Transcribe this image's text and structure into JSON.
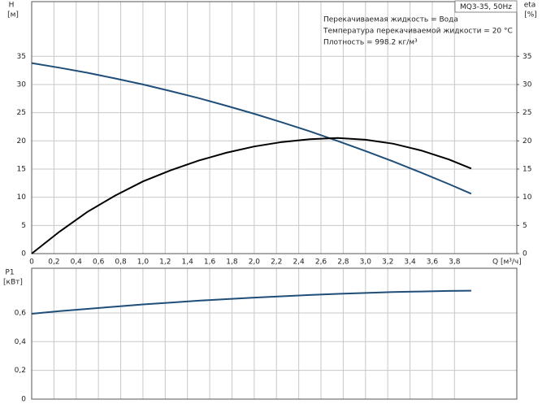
{
  "chart_data": [
    {
      "type": "line",
      "title": "MQ3-35, 50Hz",
      "annotations": [
        "Перекачиваемая жидкость = Вода",
        "Температура перекачиваемой жидкости = 20 °C",
        "Плотность = 998.2 кг/м³"
      ],
      "y_label": "H",
      "y_unit": "[м]",
      "y2_label": "eta",
      "y2_unit": "[%]",
      "x_label": "Q [м³/ч]",
      "x": [
        0,
        0.25,
        0.5,
        0.75,
        1,
        1.25,
        1.5,
        1.75,
        2,
        2.25,
        2.5,
        2.75,
        3,
        3.25,
        3.5,
        3.75,
        3.95
      ],
      "series": [
        {
          "name": "H",
          "color": "#1f4e79",
          "values": [
            33.8,
            32.98,
            32.08,
            31.08,
            30.0,
            28.83,
            27.58,
            26.23,
            24.8,
            23.28,
            21.68,
            19.98,
            18.2,
            16.33,
            14.38,
            12.33,
            10.62
          ]
        },
        {
          "name": "eta",
          "color": "#000000",
          "axis": "y2",
          "values": [
            0,
            3.9,
            7.4,
            10.3,
            12.8,
            14.8,
            16.5,
            17.9,
            19.0,
            19.8,
            20.3,
            20.5,
            20.2,
            19.5,
            18.3,
            16.7,
            15.1
          ]
        }
      ],
      "xlim": [
        0,
        4.36
      ],
      "xticks": [
        0,
        {
          "value": 0.2,
          "label": "0,2"
        },
        {
          "value": 0.4,
          "label": "0,4"
        },
        {
          "value": 0.6,
          "label": "0,6"
        },
        {
          "value": 0.8,
          "label": "0,8"
        },
        {
          "value": 1.0,
          "label": "1,0"
        },
        {
          "value": 1.2,
          "label": "1,2"
        },
        {
          "value": 1.4,
          "label": "1,4"
        },
        {
          "value": 1.6,
          "label": "1,6"
        },
        {
          "value": 1.8,
          "label": "1,8"
        },
        {
          "value": 2.0,
          "label": "2,0"
        },
        {
          "value": 2.2,
          "label": "2,2"
        },
        {
          "value": 2.4,
          "label": "2,4"
        },
        {
          "value": 2.6,
          "label": "2,6"
        },
        {
          "value": 2.8,
          "label": "2,8"
        },
        {
          "value": 3.0,
          "label": "3,0"
        },
        {
          "value": 3.2,
          "label": "3,2"
        },
        {
          "value": 3.4,
          "label": "3,4"
        },
        {
          "value": 3.6,
          "label": "3,6"
        },
        {
          "value": 3.8,
          "label": "3,8"
        }
      ],
      "ylim": [
        0,
        44.7
      ],
      "yticks": [
        0,
        5,
        10,
        15,
        20,
        25,
        30,
        35
      ],
      "y2lim": [
        0,
        44.7
      ],
      "y2ticks": [
        0,
        5,
        10,
        15,
        20,
        25,
        30,
        35
      ],
      "grid": true
    },
    {
      "type": "line",
      "y_label": "P1",
      "y_unit": "[кВт]",
      "x": [
        0,
        0.25,
        0.5,
        0.75,
        1,
        1.25,
        1.5,
        1.75,
        2,
        2.25,
        2.5,
        2.75,
        3,
        3.25,
        3.5,
        3.75,
        3.95
      ],
      "series": [
        {
          "name": "P1",
          "color": "#1f4e79",
          "values": [
            0.594,
            0.612,
            0.628,
            0.644,
            0.659,
            0.672,
            0.685,
            0.696,
            0.707,
            0.716,
            0.725,
            0.733,
            0.739,
            0.745,
            0.749,
            0.753,
            0.755
          ]
        }
      ],
      "xlim": [
        0,
        4.36
      ],
      "ylim": [
        0,
        0.911
      ],
      "yticks": [
        0,
        {
          "value": 0.2,
          "label": "0,2"
        },
        {
          "value": 0.4,
          "label": "0,4"
        },
        {
          "value": 0.6,
          "label": "0,6"
        }
      ],
      "grid": true
    }
  ]
}
